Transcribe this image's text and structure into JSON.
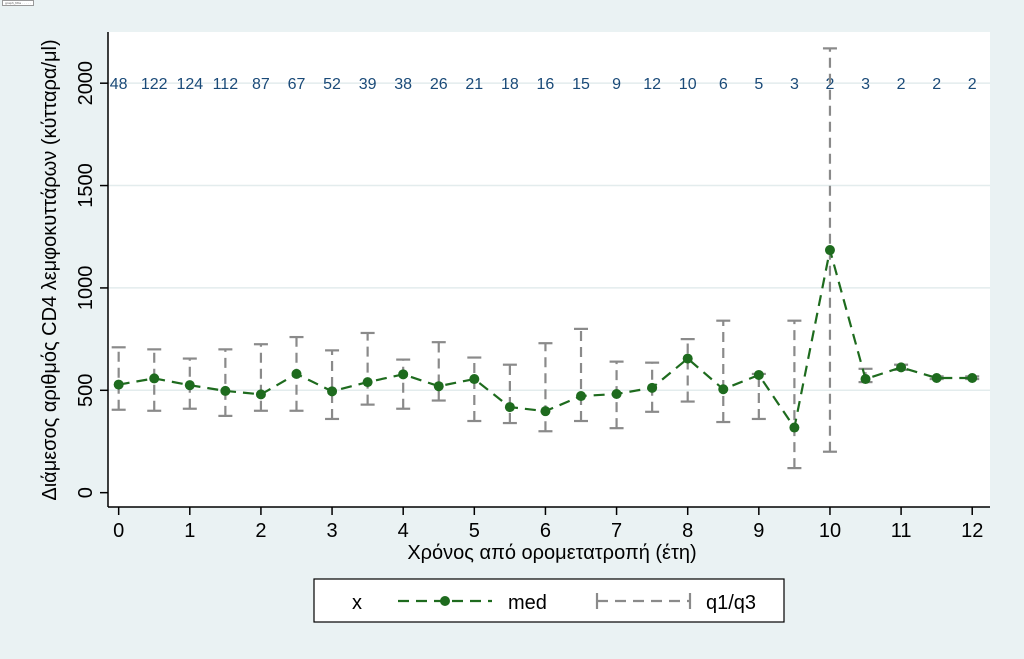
{
  "header": {
    "caption": "graph_title · · · · ·"
  },
  "chart_data": {
    "type": "line",
    "xlabel": "Χρόνος από ορομετατροπή (έτη)",
    "ylabel": "Διάμεσος αριθμός CD4 λεμφοκυττάρων (κύτταρα/μl)",
    "xlim": [
      -0.15,
      12.25
    ],
    "ylim": [
      -70,
      2250
    ],
    "xticks": [
      0,
      1,
      2,
      3,
      4,
      5,
      6,
      7,
      8,
      9,
      10,
      11,
      12
    ],
    "yticks": [
      0,
      500,
      1000,
      1500,
      2000
    ],
    "grid": true,
    "counts_y": 2000,
    "x": [
      0,
      0.5,
      1,
      1.5,
      2,
      2.5,
      3,
      3.5,
      4,
      4.5,
      5,
      5.5,
      6,
      6.5,
      7,
      7.5,
      8,
      8.5,
      9,
      9.5,
      10,
      10.5,
      11,
      11.5,
      12
    ],
    "counts": [
      "48",
      "122",
      "124",
      "112",
      "87",
      "67",
      "52",
      "39",
      "38",
      "26",
      "21",
      "18",
      "16",
      "15",
      "9",
      "12",
      "10",
      "6",
      "5",
      "3",
      "2",
      "3",
      "2",
      "2",
      "2"
    ],
    "series": [
      {
        "name": "med",
        "style": "dashed line with dots",
        "color": "#1e6b1e",
        "values": [
          528,
          558,
          525,
          497,
          480,
          580,
          495,
          540,
          578,
          520,
          555,
          418,
          398,
          472,
          482,
          512,
          655,
          505,
          575,
          318,
          1185,
          555,
          612,
          560,
          560
        ]
      },
      {
        "name": "q1/q3",
        "style": "dashed range bars",
        "color": "#8a8a8a",
        "q1": [
          405,
          400,
          410,
          375,
          400,
          400,
          360,
          430,
          410,
          450,
          350,
          340,
          300,
          350,
          315,
          395,
          445,
          345,
          360,
          120,
          200,
          540,
          600,
          555,
          555
        ],
        "q3": [
          710,
          700,
          655,
          700,
          725,
          760,
          695,
          780,
          650,
          735,
          660,
          625,
          730,
          800,
          640,
          635,
          750,
          840,
          580,
          840,
          2170,
          605,
          625,
          568,
          568
        ]
      }
    ],
    "legend": {
      "placement": "bottom",
      "entries": [
        {
          "label": "x"
        },
        {
          "label": "med"
        },
        {
          "label": "q1/q3"
        }
      ]
    }
  }
}
